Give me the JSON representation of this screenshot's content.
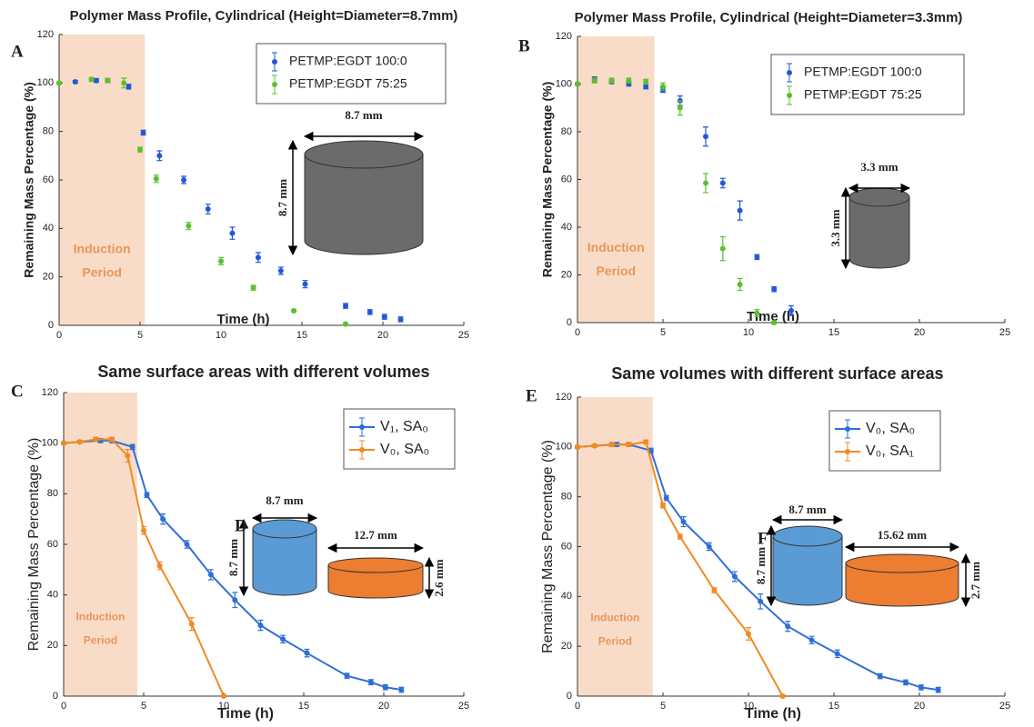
{
  "chart_data": [
    {
      "type": "scatter",
      "panel_letter": "A",
      "title": "Polymer Mass Profile, Cylindrical (Height=Diameter=8.7mm)",
      "x_label": "Time (h)",
      "y_label": "Remaining Mass Percentage (%)",
      "xlim": [
        0,
        25
      ],
      "ylim": [
        0,
        120
      ],
      "xticks": [
        0,
        5,
        10,
        15,
        20,
        25
      ],
      "yticks": [
        0,
        20,
        40,
        60,
        80,
        100,
        120
      ],
      "shade": [
        0,
        5.3
      ],
      "shade_color": "#f9dcc8",
      "shade_label": [
        "Induction",
        "Period"
      ],
      "series": [
        {
          "name": "PETMP:EGDT 100:0",
          "color": "#2457d6",
          "x": [
            1,
            2.3,
            3,
            4.3,
            5.2,
            6.2,
            7.7,
            9.2,
            10.7,
            12.3,
            13.7,
            15.2,
            17.7,
            19.2,
            20.1,
            21.1
          ],
          "values": [
            100.5,
            101,
            101,
            98.5,
            79.5,
            70,
            60,
            48,
            38,
            28,
            22.5,
            17,
            8,
            5.5,
            3.5,
            2.5
          ],
          "errors": [
            0.5,
            0.8,
            0.8,
            1,
            1,
            2,
            1.5,
            2,
            2.5,
            2,
            1.5,
            1.5,
            1,
            1,
            1,
            1
          ]
        },
        {
          "name": "PETMP:EGDT 75:25",
          "color": "#5cc02e",
          "x": [
            0,
            2,
            3,
            4,
            5,
            6,
            8,
            10,
            12,
            14.5,
            17.7
          ],
          "values": [
            100,
            101.5,
            101,
            100,
            72.5,
            60.5,
            41,
            26.5,
            15.5,
            6,
            0.5
          ],
          "errors": [
            0.5,
            0.8,
            0.8,
            2,
            1,
            1.5,
            1.5,
            1.5,
            1,
            0.5,
            0.5
          ]
        }
      ],
      "insets": [
        {
          "color": "#6b6b6b",
          "width_label": "8.7 mm",
          "height_label": "8.7 mm"
        }
      ]
    },
    {
      "type": "scatter",
      "panel_letter": "B",
      "title": "Polymer Mass Profile, Cylindrical (Height=Diameter=3.3mm)",
      "x_label": "Time (h)",
      "y_label": "Remaining Mass Percentage (%)",
      "xlim": [
        0,
        25
      ],
      "ylim": [
        0,
        120
      ],
      "xticks": [
        0,
        5,
        10,
        15,
        20,
        25
      ],
      "yticks": [
        0,
        20,
        40,
        60,
        80,
        100,
        120
      ],
      "shade": [
        0,
        4.5
      ],
      "shade_color": "#f9dcc8",
      "shade_label": [
        "Induction",
        "Period"
      ],
      "series": [
        {
          "name": "PETMP:EGDT 100:0",
          "color": "#2457d6",
          "x": [
            0,
            1,
            2,
            3,
            4,
            5,
            6,
            7.5,
            8.5,
            9.5,
            10.5,
            11.5,
            12.5
          ],
          "values": [
            100,
            102,
            101,
            100,
            99,
            97.5,
            93,
            78,
            58.5,
            47,
            27.5,
            14,
            5
          ],
          "errors": [
            0.5,
            1,
            0.8,
            0.8,
            1,
            1,
            2,
            4,
            2,
            4,
            1,
            1,
            2
          ]
        },
        {
          "name": "PETMP:EGDT 75:25",
          "color": "#5cc02e",
          "x": [
            0,
            1,
            2,
            3,
            4,
            5,
            6,
            7.5,
            8.5,
            9.5,
            10.5,
            11.5
          ],
          "values": [
            100,
            101.5,
            101.5,
            101.5,
            101,
            99,
            90,
            58.5,
            31,
            16,
            4,
            0
          ],
          "errors": [
            0.5,
            1,
            1,
            1,
            1,
            1.5,
            3,
            4,
            5,
            2.5,
            1.5,
            0.5
          ]
        }
      ],
      "insets": [
        {
          "color": "#6b6b6b",
          "width_label": "3.3 mm",
          "height_label": "3.3 mm"
        }
      ]
    },
    {
      "type": "line",
      "panel_letter": "C",
      "title": "Same surface areas with different volumes",
      "x_label": "Time (h)",
      "y_label": "Remaining Mass Percentage (%)",
      "xlim": [
        0,
        25
      ],
      "ylim": [
        0,
        120
      ],
      "xticks": [
        0,
        5,
        10,
        15,
        20,
        25
      ],
      "yticks": [
        0,
        20,
        40,
        60,
        80,
        100,
        120
      ],
      "shade": [
        0,
        4.6
      ],
      "shade_color": "#f9dcc8",
      "shade_label": [
        "Induction",
        "Period"
      ],
      "series": [
        {
          "name": "V₁, SA₀",
          "color": "#2e6fd6",
          "x": [
            0,
            1,
            2.3,
            3,
            4.3,
            5.2,
            6.2,
            7.7,
            9.2,
            10.7,
            12.3,
            13.7,
            15.2,
            17.7,
            19.2,
            20.1,
            21.1
          ],
          "values": [
            100,
            100.5,
            101,
            101,
            98.5,
            79.5,
            70,
            60,
            48,
            38,
            28,
            22.5,
            17,
            8,
            5.5,
            3.5,
            2.5
          ],
          "errors": [
            0.5,
            0.5,
            0.8,
            0.8,
            1,
            1,
            2,
            1.5,
            2,
            3,
            2,
            1.5,
            1.5,
            1,
            1,
            1,
            1
          ]
        },
        {
          "name": "V₀, SA₀",
          "color": "#f08a24",
          "x": [
            0,
            1,
            2,
            3,
            4,
            5,
            6,
            8,
            10
          ],
          "values": [
            100,
            100.5,
            101.5,
            101.5,
            95,
            65.5,
            51.5,
            28.5,
            0
          ],
          "errors": [
            0.5,
            0.5,
            0.8,
            0.8,
            2.5,
            1.5,
            1.5,
            2.5,
            0.5
          ]
        }
      ],
      "inset_letter": "D",
      "insets": [
        {
          "color": "#5b9bd5",
          "width_label": "8.7 mm",
          "height_label": "8.7 mm"
        },
        {
          "color": "#ed7d31",
          "width_label": "12.7 mm",
          "height_label": "2.6 mm"
        }
      ]
    },
    {
      "type": "line",
      "panel_letter": "E",
      "title": "Same volumes with different surface areas",
      "x_label": "Time (h)",
      "y_label": "Remaining Mass Percentage (%)",
      "xlim": [
        0,
        25
      ],
      "ylim": [
        0,
        120
      ],
      "xticks": [
        0,
        5,
        10,
        15,
        20,
        25
      ],
      "yticks": [
        0,
        20,
        40,
        60,
        80,
        100,
        120
      ],
      "shade": [
        0,
        4.4
      ],
      "shade_color": "#f9dcc8",
      "shade_label": [
        "Induction",
        "Period"
      ],
      "series": [
        {
          "name": "V₀, SA₀",
          "color": "#2e6fd6",
          "x": [
            0,
            1,
            2.3,
            3,
            4.3,
            5.2,
            6.2,
            7.7,
            9.2,
            10.7,
            12.3,
            13.7,
            15.2,
            17.7,
            19.2,
            20.1,
            21.1
          ],
          "values": [
            100,
            100.5,
            101,
            101,
            98.5,
            79.5,
            70,
            60,
            48,
            38,
            28,
            22.5,
            17,
            8,
            5.5,
            3.5,
            2.5
          ],
          "errors": [
            0.5,
            0.5,
            0.8,
            0.8,
            1,
            1,
            2,
            1.5,
            2,
            3,
            2,
            1.5,
            1.5,
            1,
            1,
            1,
            1
          ]
        },
        {
          "name": "V₀, SA₁",
          "color": "#f08a24",
          "x": [
            0,
            1,
            2,
            3,
            4,
            5,
            6,
            8,
            10,
            12
          ],
          "values": [
            100,
            100.5,
            101,
            101,
            102,
            76.5,
            64,
            42.5,
            25,
            0
          ],
          "errors": [
            0.5,
            0.5,
            0.8,
            0.8,
            0.8,
            1,
            1,
            1,
            2.5,
            0.5
          ]
        }
      ],
      "inset_letter": "F",
      "insets": [
        {
          "color": "#5b9bd5",
          "width_label": "8.7 mm",
          "height_label": "8.7 mm"
        },
        {
          "color": "#ed7d31",
          "width_label": "15.62 mm",
          "height_label": "2.7 mm"
        }
      ]
    }
  ]
}
